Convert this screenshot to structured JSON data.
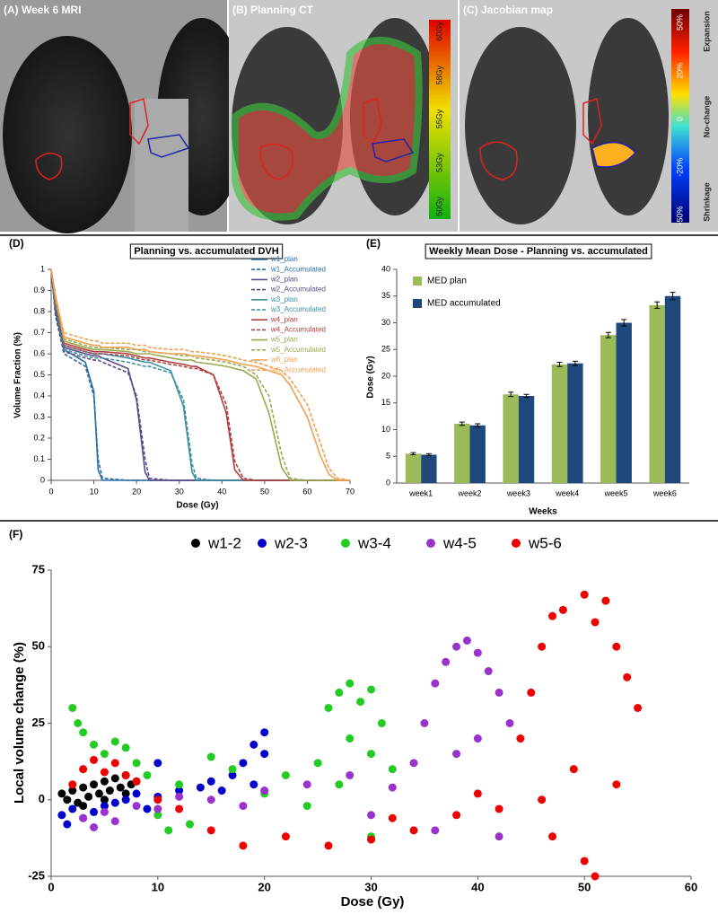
{
  "panels_top": [
    {
      "title": "(A) Week 6 MRI"
    },
    {
      "title": "(B) Planning CT",
      "colorbar_labels": [
        "60Gy",
        "58Gy",
        "55Gy",
        "53Gy",
        "50Gy"
      ]
    },
    {
      "title": "(C) Jacobian map",
      "colorbar_labels": [
        "50%",
        "20%",
        "0",
        "-20%",
        "-50%"
      ],
      "colorbar_side_labels": [
        "Expansion",
        "No-change",
        "Shrinkage"
      ]
    }
  ],
  "chart_data": [
    {
      "type": "line",
      "panel_label": "(D)",
      "title": "Planning vs. accumulated DVH",
      "x_label": "Dose (Gy)",
      "y_label": "Volume Fraction (%)",
      "x": [
        0,
        1,
        3,
        8,
        10,
        11,
        12,
        18,
        20,
        22,
        23,
        28,
        31,
        33,
        34,
        38,
        41,
        43,
        45,
        48,
        51,
        54,
        56,
        60,
        63,
        65,
        67,
        70
      ],
      "xlim": [
        0,
        70
      ],
      "xticks": [
        0,
        10,
        20,
        30,
        40,
        50,
        60,
        70
      ],
      "ylim": [
        0,
        1
      ],
      "yticks": [
        0,
        0.1,
        0.2,
        0.3,
        0.4,
        0.5,
        0.6,
        0.7,
        0.8,
        0.9,
        1
      ],
      "series": [
        {
          "name": "w1_plan",
          "color": "#2b6ea6",
          "dashed": false,
          "values": [
            1,
            0.8,
            0.62,
            0.56,
            0.42,
            0.05,
            0,
            0,
            0,
            0,
            0,
            0,
            0,
            0,
            0,
            0,
            0,
            0,
            0,
            0,
            0,
            0,
            0,
            0,
            0,
            0,
            0,
            0
          ]
        },
        {
          "name": "w1_Accumulated",
          "color": "#2b6ea6",
          "dashed": true,
          "values": [
            1,
            0.78,
            0.6,
            0.54,
            0.4,
            0.1,
            0.01,
            0,
            0,
            0,
            0,
            0,
            0,
            0,
            0,
            0,
            0,
            0,
            0,
            0,
            0,
            0,
            0,
            0,
            0,
            0,
            0,
            0
          ]
        },
        {
          "name": "w2_plan",
          "color": "#5a4a88",
          "dashed": false,
          "values": [
            1,
            0.82,
            0.63,
            0.6,
            0.59,
            0.59,
            0.58,
            0.53,
            0.38,
            0.04,
            0,
            0,
            0,
            0,
            0,
            0,
            0,
            0,
            0,
            0,
            0,
            0,
            0,
            0,
            0,
            0,
            0,
            0
          ]
        },
        {
          "name": "w2_Accumulated",
          "color": "#5a4a88",
          "dashed": true,
          "values": [
            1,
            0.8,
            0.61,
            0.58,
            0.57,
            0.57,
            0.56,
            0.51,
            0.4,
            0.1,
            0.01,
            0,
            0,
            0,
            0,
            0,
            0,
            0,
            0,
            0,
            0,
            0,
            0,
            0,
            0,
            0,
            0,
            0
          ]
        },
        {
          "name": "w3_plan",
          "color": "#3a8fa0",
          "dashed": false,
          "values": [
            1,
            0.85,
            0.64,
            0.61,
            0.6,
            0.6,
            0.6,
            0.58,
            0.57,
            0.56,
            0.56,
            0.52,
            0.35,
            0.04,
            0,
            0,
            0,
            0,
            0,
            0,
            0,
            0,
            0,
            0,
            0,
            0,
            0,
            0
          ]
        },
        {
          "name": "w3_Accumulated",
          "color": "#3a8fa0",
          "dashed": true,
          "values": [
            1,
            0.83,
            0.62,
            0.59,
            0.58,
            0.58,
            0.58,
            0.56,
            0.55,
            0.54,
            0.54,
            0.51,
            0.38,
            0.08,
            0.01,
            0,
            0,
            0,
            0,
            0,
            0,
            0,
            0,
            0,
            0,
            0,
            0,
            0
          ]
        },
        {
          "name": "w4_plan",
          "color": "#b04040",
          "dashed": false,
          "values": [
            1,
            0.86,
            0.65,
            0.62,
            0.61,
            0.61,
            0.61,
            0.6,
            0.59,
            0.58,
            0.58,
            0.56,
            0.55,
            0.54,
            0.54,
            0.5,
            0.32,
            0.05,
            0,
            0,
            0,
            0,
            0,
            0,
            0,
            0,
            0,
            0
          ]
        },
        {
          "name": "w4_Accumulated",
          "color": "#b04040",
          "dashed": true,
          "values": [
            1,
            0.84,
            0.64,
            0.61,
            0.6,
            0.6,
            0.6,
            0.59,
            0.58,
            0.57,
            0.57,
            0.55,
            0.54,
            0.53,
            0.53,
            0.5,
            0.36,
            0.09,
            0.01,
            0,
            0,
            0,
            0,
            0,
            0,
            0,
            0,
            0
          ]
        },
        {
          "name": "w5_plan",
          "color": "#9aaa50",
          "dashed": false,
          "values": [
            1,
            0.87,
            0.66,
            0.63,
            0.62,
            0.62,
            0.62,
            0.61,
            0.6,
            0.6,
            0.6,
            0.58,
            0.57,
            0.57,
            0.56,
            0.55,
            0.54,
            0.53,
            0.52,
            0.48,
            0.32,
            0.06,
            0,
            0,
            0,
            0,
            0,
            0
          ]
        },
        {
          "name": "w5_Accumulated",
          "color": "#9aaa50",
          "dashed": true,
          "values": [
            1,
            0.85,
            0.67,
            0.64,
            0.63,
            0.63,
            0.63,
            0.62,
            0.62,
            0.61,
            0.61,
            0.6,
            0.59,
            0.59,
            0.58,
            0.57,
            0.56,
            0.55,
            0.54,
            0.5,
            0.4,
            0.12,
            0.01,
            0,
            0,
            0,
            0,
            0
          ]
        },
        {
          "name": "w6_plan",
          "color": "#f0a050",
          "dashed": false,
          "values": [
            1,
            0.88,
            0.68,
            0.65,
            0.64,
            0.64,
            0.63,
            0.63,
            0.62,
            0.62,
            0.61,
            0.6,
            0.6,
            0.59,
            0.59,
            0.58,
            0.57,
            0.56,
            0.55,
            0.54,
            0.52,
            0.5,
            0.45,
            0.3,
            0.12,
            0.03,
            0,
            0
          ]
        },
        {
          "name": "w6_Accumulated",
          "color": "#f0a050",
          "dashed": true,
          "values": [
            1,
            0.86,
            0.7,
            0.67,
            0.66,
            0.66,
            0.65,
            0.65,
            0.64,
            0.64,
            0.63,
            0.62,
            0.62,
            0.61,
            0.61,
            0.6,
            0.59,
            0.58,
            0.57,
            0.56,
            0.54,
            0.52,
            0.48,
            0.36,
            0.18,
            0.06,
            0.01,
            0
          ]
        }
      ]
    },
    {
      "type": "bar",
      "panel_label": "(E)",
      "title": "Weekly Mean Dose - Planning vs. accumulated",
      "x_label": "Weeks",
      "y_label": "Dose (Gy)",
      "categories": [
        "week1",
        "week2",
        "week3",
        "week4",
        "week5",
        "week6"
      ],
      "ylim": [
        0,
        40
      ],
      "yticks": [
        0,
        5,
        10,
        15,
        20,
        25,
        30,
        35,
        40
      ],
      "series": [
        {
          "name": "MED plan",
          "color": "#9bbb59",
          "values": [
            5.5,
            11.1,
            16.6,
            22.2,
            27.7,
            33.3
          ],
          "errors": [
            0.2,
            0.3,
            0.4,
            0.4,
            0.5,
            0.6
          ]
        },
        {
          "name": "MED accumulated",
          "color": "#1f497d",
          "values": [
            5.3,
            10.8,
            16.3,
            22.4,
            30,
            35
          ],
          "errors": [
            0.2,
            0.3,
            0.3,
            0.4,
            0.6,
            0.7
          ]
        }
      ]
    },
    {
      "type": "scatter",
      "panel_label": "(F)",
      "x_label": "Dose (Gy)",
      "y_label": "Local volume change (%)",
      "xlim": [
        0,
        60
      ],
      "xticks": [
        0,
        10,
        20,
        30,
        40,
        50,
        60
      ],
      "ylim": [
        -25,
        75
      ],
      "yticks": [
        -25,
        0,
        25,
        50,
        75
      ],
      "series": [
        {
          "name": "w1-2",
          "color": "#000000",
          "x": [
            1,
            1.5,
            2,
            2.5,
            3,
            3.5,
            4,
            4.5,
            5,
            5.5,
            6,
            6.5,
            7,
            7.5,
            8,
            3,
            5,
            7
          ],
          "y": [
            2,
            0,
            3,
            -1,
            4,
            1,
            5,
            2,
            6,
            3,
            7,
            4,
            8,
            5,
            6,
            -2,
            0,
            2
          ]
        },
        {
          "name": "w2-3",
          "color": "#0000cc",
          "x": [
            1,
            1.5,
            2,
            3,
            4,
            5,
            6,
            7,
            8,
            9,
            10,
            12,
            14,
            15,
            16,
            17,
            18,
            19,
            20,
            20,
            19,
            10
          ],
          "y": [
            -5,
            -8,
            -3,
            -6,
            -4,
            -2,
            -1,
            0,
            2,
            -3,
            1,
            3,
            4,
            6,
            3,
            8,
            12,
            18,
            22,
            15,
            5,
            12
          ]
        },
        {
          "name": "w3-4",
          "color": "#22cc22",
          "x": [
            2,
            2.5,
            3,
            4,
            5,
            6,
            7,
            8,
            9,
            10,
            11,
            12,
            13,
            15,
            17,
            20,
            22,
            25,
            26,
            27,
            28,
            29,
            30,
            31,
            28,
            30,
            32,
            27,
            30,
            24
          ],
          "y": [
            30,
            25,
            22,
            18,
            15,
            19,
            17,
            12,
            8,
            -5,
            -10,
            5,
            -8,
            14,
            10,
            2,
            8,
            12,
            30,
            35,
            38,
            32,
            36,
            25,
            20,
            15,
            10,
            5,
            -12,
            -2
          ]
        },
        {
          "name": "w4-5",
          "color": "#9933cc",
          "x": [
            3,
            4,
            5,
            6,
            8,
            10,
            12,
            15,
            18,
            20,
            24,
            28,
            32,
            34,
            35,
            36,
            37,
            38,
            39,
            40,
            41,
            42,
            43,
            40,
            38,
            36,
            42,
            30
          ],
          "y": [
            -6,
            -9,
            -4,
            -7,
            -2,
            -3,
            1,
            0,
            -2,
            3,
            5,
            8,
            4,
            12,
            25,
            38,
            45,
            50,
            52,
            48,
            42,
            35,
            25,
            20,
            15,
            -10,
            -12,
            -5
          ]
        },
        {
          "name": "w5-6",
          "color": "#ee0000",
          "x": [
            2,
            3,
            4,
            5,
            6,
            7,
            8,
            10,
            12,
            15,
            18,
            22,
            26,
            30,
            34,
            38,
            42,
            44,
            45,
            46,
            47,
            48,
            50,
            51,
            52,
            53,
            54,
            55,
            50,
            51,
            49,
            46,
            53,
            47,
            40,
            32
          ],
          "y": [
            5,
            10,
            13,
            9,
            12,
            8,
            6,
            0,
            -3,
            -10,
            -15,
            -12,
            -15,
            -13,
            -10,
            -5,
            -3,
            20,
            35,
            50,
            60,
            62,
            67,
            58,
            65,
            50,
            40,
            30,
            -20,
            -25,
            10,
            0,
            5,
            -12,
            2,
            -6
          ]
        }
      ]
    }
  ]
}
